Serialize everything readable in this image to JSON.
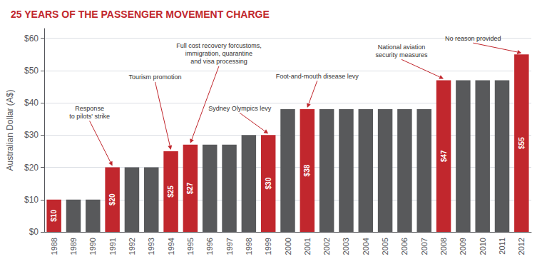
{
  "chart_data": {
    "type": "bar",
    "title": "25 YEARS OF THE PASSENGER MOVEMENT CHARGE",
    "ylabel": "Australian Dollar (A$)",
    "categories": [
      "1988",
      "1989",
      "1990",
      "1991",
      "1992",
      "1993",
      "1994",
      "1995",
      "1996",
      "1997",
      "1998",
      "1999",
      "2000",
      "2001",
      "2002",
      "2003",
      "2004",
      "2005",
      "2006",
      "2007",
      "2008",
      "2009",
      "2010",
      "2011",
      "2012"
    ],
    "values": [
      10,
      10,
      10,
      20,
      20,
      20,
      25,
      27,
      27,
      27,
      30,
      30,
      38,
      38,
      38,
      38,
      38,
      38,
      38,
      38,
      47,
      47,
      47,
      47,
      55
    ],
    "value_labels": [
      "$10",
      null,
      null,
      "$20",
      null,
      null,
      "$25",
      "$27",
      null,
      null,
      null,
      "$30",
      null,
      "$38",
      null,
      null,
      null,
      null,
      null,
      null,
      "$47",
      null,
      null,
      null,
      "$55"
    ],
    "colors": [
      "#c1272d",
      "#58595b",
      "#58595b",
      "#c1272d",
      "#58595b",
      "#58595b",
      "#c1272d",
      "#c1272d",
      "#58595b",
      "#58595b",
      "#58595b",
      "#c1272d",
      "#58595b",
      "#c1272d",
      "#58595b",
      "#58595b",
      "#58595b",
      "#58595b",
      "#58595b",
      "#58595b",
      "#c1272d",
      "#58595b",
      "#58595b",
      "#58595b",
      "#c1272d"
    ],
    "ylim": [
      0,
      63
    ],
    "yticks": [
      {
        "value": 0,
        "label": "$0"
      },
      {
        "value": 10,
        "label": "$10"
      },
      {
        "value": 20,
        "label": "$20"
      },
      {
        "value": 30,
        "label": "$30"
      },
      {
        "value": 40,
        "label": "$40"
      },
      {
        "value": 50,
        "label": "$50"
      },
      {
        "value": 60,
        "label": "$60"
      }
    ],
    "grid": true,
    "annotations": [
      {
        "text": "Response\nto pilots' strike",
        "x": "1991"
      },
      {
        "text": "Tourism promotion",
        "x": "1994"
      },
      {
        "text": "Full cost recovery forcustoms,\nimmigration, quarantine\nand visa processing",
        "x": "1995"
      },
      {
        "text": "Sydney Olympics levy",
        "x": "1999"
      },
      {
        "text": "Foot-and-mouth disease levy",
        "x": "2001"
      },
      {
        "text": "National aviation\nsecurity measures",
        "x": "2008"
      },
      {
        "text": "No reason provided",
        "x": "2012"
      }
    ]
  }
}
